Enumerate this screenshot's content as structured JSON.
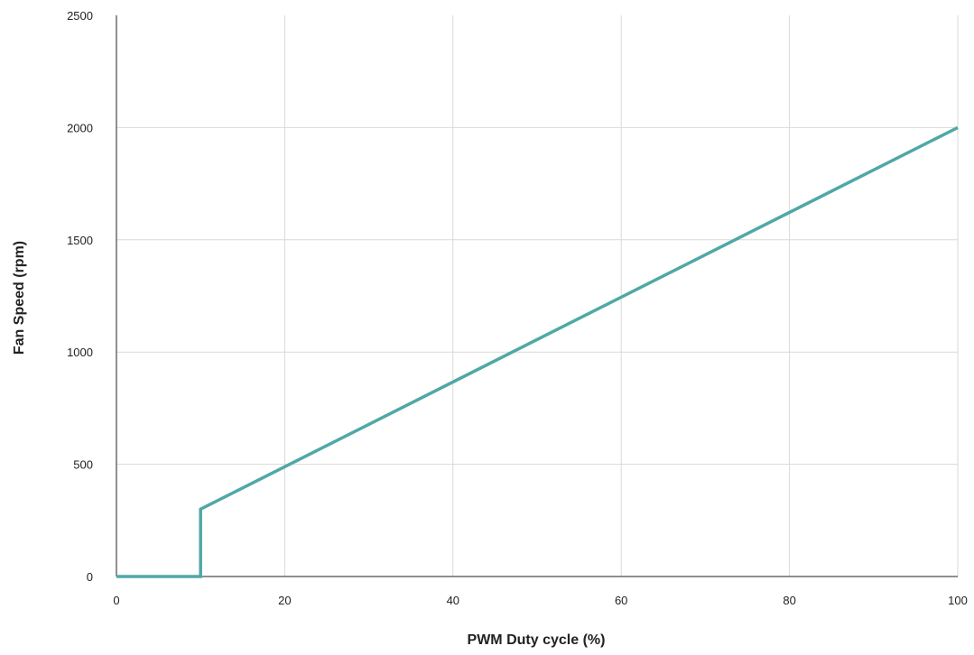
{
  "chart_data": {
    "type": "line",
    "title": "",
    "xlabel": "PWM Duty cycle (%)",
    "ylabel": "Fan Speed (rpm)",
    "xlim": [
      0,
      100
    ],
    "ylim": [
      0,
      2500
    ],
    "x_ticks": [
      0,
      20,
      40,
      60,
      80,
      100
    ],
    "y_ticks": [
      0,
      500,
      1000,
      1500,
      2000,
      2500
    ],
    "grid": true,
    "legend": "none",
    "series": [
      {
        "color": "#4fa8a6",
        "points": [
          {
            "x": 0,
            "y": 0
          },
          {
            "x": 10,
            "y": 0
          },
          {
            "x": 10,
            "y": 300
          },
          {
            "x": 100,
            "y": 2000
          }
        ]
      }
    ]
  }
}
